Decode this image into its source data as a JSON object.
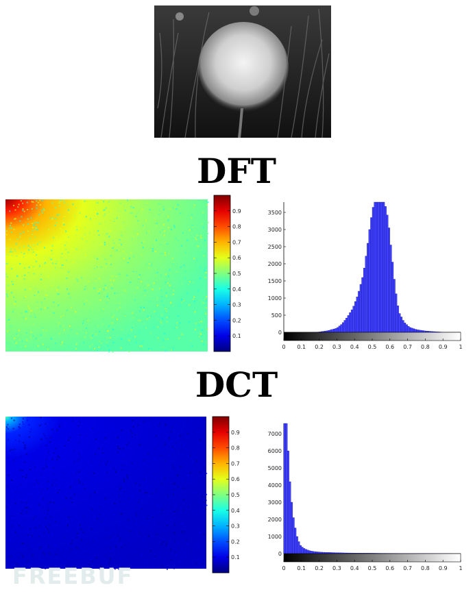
{
  "header_image": {
    "subject": "dandelion photo (grayscale)"
  },
  "sections": {
    "dft_title": "DFT",
    "dct_title": "DCT"
  },
  "watermark": "FREEBUF",
  "chart_data": [
    {
      "type": "heatmap",
      "title": "",
      "description": "DFT coefficient magnitude map",
      "colormap": "jet",
      "colorbar_ticks": [
        0.1,
        0.2,
        0.3,
        0.4,
        0.5,
        0.6,
        0.7,
        0.8,
        0.9
      ],
      "colorbar_range": [
        0,
        1
      ],
      "typical_value": 0.5,
      "corner_value": 0.95
    },
    {
      "type": "bar",
      "title": "",
      "description": "Histogram of DFT coefficient values",
      "x": [
        0.2,
        0.25,
        0.3,
        0.33,
        0.36,
        0.39,
        0.42,
        0.45,
        0.47,
        0.49,
        0.51,
        0.53,
        0.55,
        0.57,
        0.59,
        0.61,
        0.63,
        0.65,
        0.68,
        0.71,
        0.75,
        0.8,
        0.85,
        0.9
      ],
      "values": [
        10,
        50,
        120,
        250,
        450,
        700,
        1100,
        1700,
        2400,
        3200,
        3800,
        3800,
        3800,
        3800,
        3300,
        2300,
        1300,
        600,
        300,
        150,
        80,
        40,
        20,
        5
      ],
      "xlim": [
        0,
        1
      ],
      "ylim": [
        0,
        3800
      ],
      "xticks": [
        "0",
        "0.1",
        "0.2",
        "0.3",
        "0.4",
        "0.5",
        "0.6",
        "0.7",
        "0.8",
        "0.9",
        "1"
      ],
      "yticks": [
        0,
        500,
        1000,
        1500,
        2000,
        2500,
        3000,
        3500
      ],
      "bar_color": "#0000ff"
    },
    {
      "type": "heatmap",
      "title": "",
      "description": "DCT coefficient magnitude map",
      "colormap": "jet",
      "colorbar_ticks": [
        0.1,
        0.2,
        0.3,
        0.4,
        0.5,
        0.6,
        0.7,
        0.8,
        0.9
      ],
      "colorbar_range": [
        0,
        1
      ],
      "typical_value": 0.05,
      "corner_value": 0.45
    },
    {
      "type": "bar",
      "title": "",
      "description": "Histogram of DCT coefficient values",
      "x": [
        0.005,
        0.015,
        0.025,
        0.035,
        0.045,
        0.055,
        0.065,
        0.075,
        0.085,
        0.095,
        0.11,
        0.13,
        0.15,
        0.18,
        0.22,
        0.28,
        0.35,
        0.45,
        0.55,
        0.65,
        0.75,
        0.85,
        0.95
      ],
      "values": [
        7600,
        7600,
        6000,
        4200,
        3000,
        2100,
        1500,
        1000,
        700,
        480,
        330,
        230,
        160,
        110,
        80,
        60,
        40,
        30,
        20,
        15,
        10,
        5,
        3
      ],
      "xlim": [
        0,
        1
      ],
      "ylim": [
        0,
        7600
      ],
      "xticks": [
        "0",
        "0.1",
        "0.2",
        "0.3",
        "0.4",
        "0.5",
        "0.6",
        "0.7",
        "0.8",
        "0.9",
        "1"
      ],
      "yticks": [
        0,
        1000,
        2000,
        3000,
        4000,
        5000,
        6000,
        7000
      ],
      "bar_color": "#0000ff"
    }
  ]
}
